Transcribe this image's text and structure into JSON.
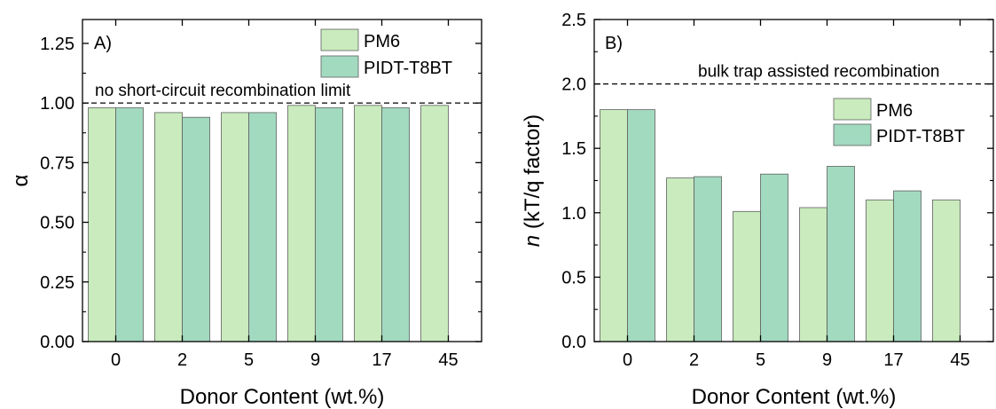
{
  "colors": {
    "PM6": "#c9ebbd",
    "PIDT-T8BT": "#a2dac0",
    "bar_edge": "#606060",
    "axis": "#000000"
  },
  "chart_data": [
    {
      "type": "bar",
      "panel_label": "A)",
      "categories": [
        "0",
        "2",
        "5",
        "9",
        "17",
        "45"
      ],
      "series": [
        {
          "name": "PM6",
          "values": [
            0.98,
            0.96,
            0.96,
            0.99,
            0.99,
            0.99
          ]
        },
        {
          "name": "PIDT-T8BT",
          "values": [
            0.98,
            0.94,
            0.96,
            0.98,
            0.98,
            null
          ]
        }
      ],
      "xlabel": "Donor Content (wt.%)",
      "ylabel": "α",
      "ylabel_italic": "",
      "ylim": [
        0,
        1.35
      ],
      "yticks": [
        "0.00",
        "0.25",
        "0.50",
        "0.75",
        "1.00",
        "1.25"
      ],
      "legend_position": "top-right",
      "reference_line": {
        "y": 1.0,
        "style": "dashed",
        "label": "no short-circuit recombination limit"
      },
      "grid": false
    },
    {
      "type": "bar",
      "panel_label": "B)",
      "categories": [
        "0",
        "2",
        "5",
        "9",
        "17",
        "45"
      ],
      "series": [
        {
          "name": "PM6",
          "values": [
            1.8,
            1.27,
            1.01,
            1.04,
            1.1,
            1.1
          ]
        },
        {
          "name": "PIDT-T8BT",
          "values": [
            1.8,
            1.28,
            1.3,
            1.36,
            1.17,
            null
          ]
        }
      ],
      "xlabel": "Donor Content (wt.%)",
      "ylabel": " (kT/q factor)",
      "ylabel_italic": "n",
      "ylim": [
        0,
        2.5
      ],
      "yticks": [
        "0.0",
        "0.5",
        "1.0",
        "1.5",
        "2.0",
        "2.5"
      ],
      "legend_position": "upper-right",
      "reference_line": {
        "y": 2.0,
        "style": "dashed",
        "label": "bulk trap assisted recombination"
      },
      "grid": false
    }
  ]
}
